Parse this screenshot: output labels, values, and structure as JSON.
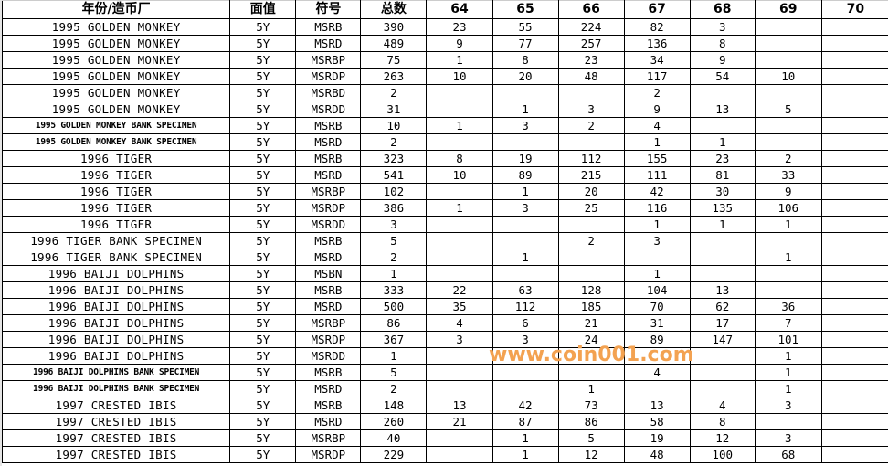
{
  "headers": [
    "年份/造币厂",
    "面值",
    "符号",
    "总数",
    "64",
    "65",
    "66",
    "67",
    "68",
    "69",
    "70"
  ],
  "rows": [
    [
      "1995 GOLDEN MONKEY",
      "5Y",
      "MSRB",
      "390",
      "23",
      "55",
      "224",
      "82",
      "3",
      "",
      ""
    ],
    [
      "1995 GOLDEN MONKEY",
      "5Y",
      "MSRD",
      "489",
      "9",
      "77",
      "257",
      "136",
      "8",
      "",
      ""
    ],
    [
      "1995 GOLDEN MONKEY",
      "5Y",
      "MSRBP",
      "75",
      "1",
      "8",
      "23",
      "34",
      "9",
      "",
      ""
    ],
    [
      "1995 GOLDEN MONKEY",
      "5Y",
      "MSRDP",
      "263",
      "10",
      "20",
      "48",
      "117",
      "54",
      "10",
      ""
    ],
    [
      "1995 GOLDEN MONKEY",
      "5Y",
      "MSRBD",
      "2",
      "",
      "",
      "",
      "2",
      "",
      "",
      ""
    ],
    [
      "1995 GOLDEN MONKEY",
      "5Y",
      "MSRDD",
      "31",
      "",
      "1",
      "3",
      "9",
      "13",
      "5",
      ""
    ],
    [
      "1995 GOLDEN MONKEY BANK SPECIMEN",
      "5Y",
      "MSRB",
      "10",
      "1",
      "3",
      "2",
      "4",
      "",
      "",
      ""
    ],
    [
      "1995 GOLDEN MONKEY BANK SPECIMEN",
      "5Y",
      "MSRD",
      "2",
      "",
      "",
      "",
      "1",
      "1",
      "",
      ""
    ],
    [
      "1996 TIGER",
      "5Y",
      "MSRB",
      "323",
      "8",
      "19",
      "112",
      "155",
      "23",
      "2",
      ""
    ],
    [
      "1996 TIGER",
      "5Y",
      "MSRD",
      "541",
      "10",
      "89",
      "215",
      "111",
      "81",
      "33",
      ""
    ],
    [
      "1996 TIGER",
      "5Y",
      "MSRBP",
      "102",
      "",
      "1",
      "20",
      "42",
      "30",
      "9",
      ""
    ],
    [
      "1996 TIGER",
      "5Y",
      "MSRDP",
      "386",
      "1",
      "3",
      "25",
      "116",
      "135",
      "106",
      ""
    ],
    [
      "1996 TIGER",
      "5Y",
      "MSRDD",
      "3",
      "",
      "",
      "",
      "1",
      "1",
      "1",
      ""
    ],
    [
      "1996 TIGER BANK SPECIMEN",
      "5Y",
      "MSRB",
      "5",
      "",
      "",
      "2",
      "3",
      "",
      "",
      ""
    ],
    [
      "1996 TIGER BANK SPECIMEN",
      "5Y",
      "MSRD",
      "2",
      "",
      "1",
      "",
      "",
      "",
      "1",
      ""
    ],
    [
      "1996 BAIJI DOLPHINS",
      "5Y",
      "MSBN",
      "1",
      "",
      "",
      "",
      "1",
      "",
      "",
      ""
    ],
    [
      "1996 BAIJI DOLPHINS",
      "5Y",
      "MSRB",
      "333",
      "22",
      "63",
      "128",
      "104",
      "13",
      "",
      ""
    ],
    [
      "1996 BAIJI DOLPHINS",
      "5Y",
      "MSRD",
      "500",
      "35",
      "112",
      "185",
      "70",
      "62",
      "36",
      ""
    ],
    [
      "1996 BAIJI DOLPHINS",
      "5Y",
      "MSRBP",
      "86",
      "4",
      "6",
      "21",
      "31",
      "17",
      "7",
      ""
    ],
    [
      "1996 BAIJI DOLPHINS",
      "5Y",
      "MSRDP",
      "367",
      "3",
      "3",
      "24",
      "89",
      "147",
      "101",
      ""
    ],
    [
      "1996 BAIJI DOLPHINS",
      "5Y",
      "MSRDD",
      "1",
      "",
      "",
      "",
      "",
      "",
      "1",
      ""
    ],
    [
      "1996 BAIJI DOLPHINS BANK SPECIMEN",
      "5Y",
      "MSRB",
      "5",
      "",
      "",
      "",
      "4",
      "",
      "1",
      ""
    ],
    [
      "1996 BAIJI DOLPHINS BANK SPECIMEN",
      "5Y",
      "MSRD",
      "2",
      "",
      "",
      "1",
      "",
      "",
      "1",
      ""
    ],
    [
      "1997 CRESTED IBIS",
      "5Y",
      "MSRB",
      "148",
      "13",
      "42",
      "73",
      "13",
      "4",
      "3",
      ""
    ],
    [
      "1997 CRESTED IBIS",
      "5Y",
      "MSRD",
      "260",
      "21",
      "87",
      "86",
      "58",
      "8",
      "",
      ""
    ],
    [
      "1997 CRESTED IBIS",
      "5Y",
      "MSRBP",
      "40",
      "",
      "1",
      "5",
      "19",
      "12",
      "3",
      ""
    ],
    [
      "1997 CRESTED IBIS",
      "5Y",
      "MSRDP",
      "229",
      "",
      "1",
      "12",
      "48",
      "100",
      "68",
      ""
    ]
  ],
  "watermark": "www.coin001.com",
  "colors": {
    "watermark": "#f3a251",
    "grid": "#000000"
  }
}
